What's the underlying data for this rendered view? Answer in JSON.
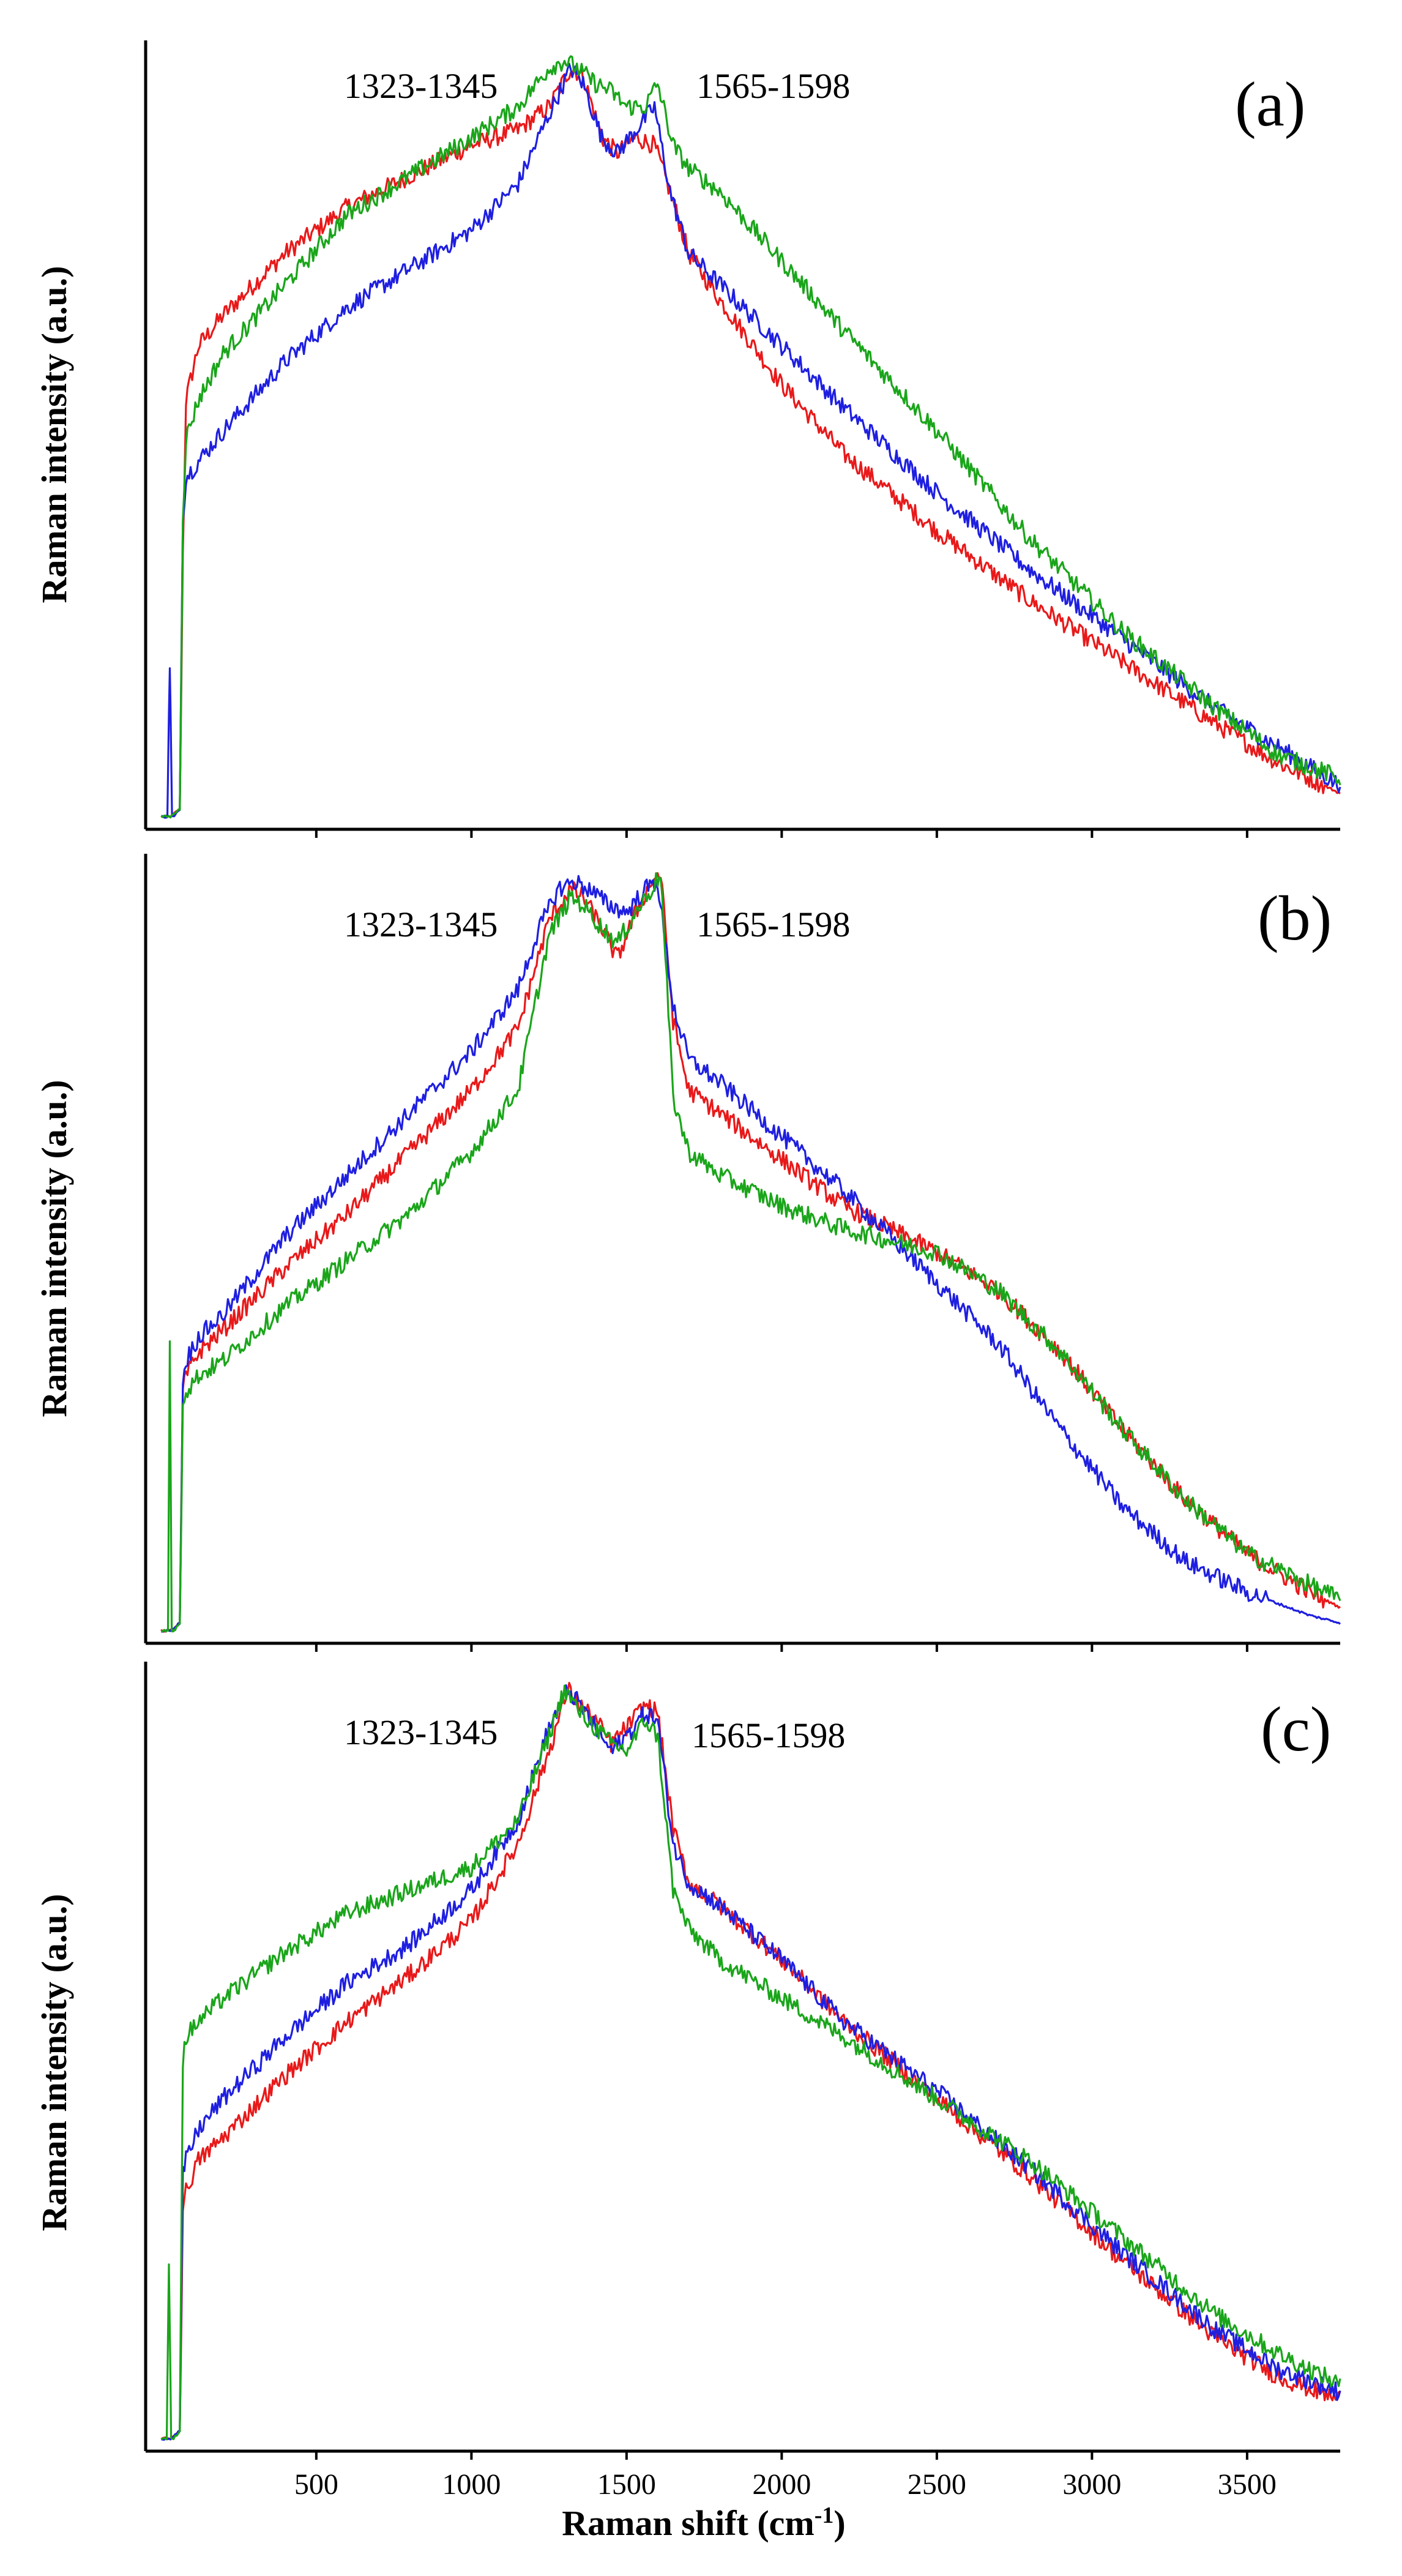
{
  "chart_data": [
    {
      "type": "line",
      "panel": "(a)",
      "ylabel": "Raman intensity (a.u.)",
      "xlim": [
        -50,
        3800
      ],
      "ylim": [
        0,
        1
      ],
      "annotations": [
        "1323-1345",
        "1565-1598"
      ],
      "series": [
        {
          "name": "red",
          "color": "#e8191a",
          "x": [
            0,
            30,
            60,
            70,
            80,
            120,
            200,
            400,
            600,
            800,
            1000,
            1150,
            1250,
            1320,
            1360,
            1420,
            1470,
            1530,
            1590,
            1640,
            1700,
            1800,
            2000,
            2200,
            2500,
            2800,
            3100,
            3400,
            3600,
            3800
          ],
          "y": [
            0.01,
            0.01,
            0.02,
            0.35,
            0.55,
            0.62,
            0.66,
            0.74,
            0.8,
            0.84,
            0.88,
            0.9,
            0.93,
            0.98,
            0.97,
            0.89,
            0.87,
            0.89,
            0.88,
            0.82,
            0.74,
            0.68,
            0.57,
            0.48,
            0.38,
            0.29,
            0.21,
            0.13,
            0.08,
            0.04
          ]
        },
        {
          "name": "blue",
          "color": "#1f1fe0",
          "x": [
            0,
            20,
            28,
            35,
            42,
            60,
            70,
            80,
            120,
            200,
            400,
            600,
            800,
            1000,
            1150,
            1250,
            1320,
            1360,
            1420,
            1470,
            1530,
            1590,
            1640,
            1700,
            1800,
            2000,
            2200,
            2500,
            2800,
            3100,
            3400,
            3600,
            3800
          ],
          "y": [
            0.01,
            0.01,
            0.21,
            0.01,
            0.01,
            0.02,
            0.4,
            0.45,
            0.47,
            0.51,
            0.6,
            0.67,
            0.72,
            0.77,
            0.83,
            0.92,
            0.98,
            0.96,
            0.89,
            0.87,
            0.9,
            0.93,
            0.82,
            0.74,
            0.7,
            0.62,
            0.54,
            0.43,
            0.33,
            0.24,
            0.15,
            0.1,
            0.05
          ]
        },
        {
          "name": "green",
          "color": "#1aa51a",
          "x": [
            0,
            30,
            60,
            70,
            80,
            120,
            200,
            400,
            600,
            800,
            1000,
            1150,
            1250,
            1300,
            1340,
            1400,
            1450,
            1500,
            1560,
            1600,
            1650,
            1700,
            1800,
            2000,
            2200,
            2500,
            2800,
            3100,
            3400,
            3600,
            3800
          ],
          "y": [
            0.01,
            0.01,
            0.02,
            0.4,
            0.5,
            0.55,
            0.61,
            0.7,
            0.79,
            0.84,
            0.89,
            0.93,
            0.98,
            0.99,
            0.98,
            0.96,
            0.95,
            0.93,
            0.93,
            0.96,
            0.88,
            0.85,
            0.82,
            0.73,
            0.64,
            0.51,
            0.37,
            0.25,
            0.15,
            0.09,
            0.06
          ]
        }
      ]
    },
    {
      "type": "line",
      "panel": "(b)",
      "ylabel": "Raman intensity (a.u.)",
      "xlim": [
        -50,
        3800
      ],
      "ylim": [
        0,
        1
      ],
      "annotations": [
        "1323-1345",
        "1565-1598"
      ],
      "series": [
        {
          "name": "red",
          "color": "#e8191a",
          "x": [
            0,
            30,
            60,
            70,
            80,
            120,
            200,
            400,
            600,
            800,
            1000,
            1150,
            1250,
            1320,
            1360,
            1420,
            1470,
            1530,
            1580,
            1610,
            1650,
            1700,
            1800,
            2000,
            2200,
            2500,
            2700,
            2900,
            3100,
            3300,
            3500,
            3700,
            3800
          ],
          "y": [
            0.01,
            0.01,
            0.02,
            0.32,
            0.34,
            0.37,
            0.4,
            0.48,
            0.55,
            0.63,
            0.71,
            0.79,
            0.93,
            0.97,
            0.96,
            0.92,
            0.88,
            0.94,
            0.98,
            0.99,
            0.8,
            0.71,
            0.68,
            0.62,
            0.56,
            0.5,
            0.45,
            0.37,
            0.27,
            0.18,
            0.11,
            0.06,
            0.04
          ]
        },
        {
          "name": "blue",
          "color": "#1f1fe0",
          "x": [
            0,
            30,
            60,
            70,
            80,
            120,
            200,
            400,
            600,
            800,
            1000,
            1150,
            1220,
            1280,
            1330,
            1380,
            1440,
            1500,
            1560,
            1600,
            1650,
            1700,
            1800,
            2000,
            2200,
            2500,
            2700,
            2900,
            3100,
            3300,
            3500,
            3700,
            3800
          ],
          "y": [
            0.01,
            0.01,
            0.02,
            0.33,
            0.36,
            0.39,
            0.42,
            0.52,
            0.6,
            0.68,
            0.76,
            0.84,
            0.92,
            0.97,
            0.98,
            0.97,
            0.95,
            0.94,
            0.97,
            0.98,
            0.82,
            0.75,
            0.72,
            0.65,
            0.58,
            0.46,
            0.38,
            0.27,
            0.17,
            0.1,
            0.06,
            0.03,
            0.02
          ]
        },
        {
          "name": "green",
          "color": "#1aa51a",
          "x": [
            0,
            22,
            28,
            34,
            42,
            60,
            70,
            80,
            120,
            200,
            400,
            600,
            800,
            1000,
            1150,
            1250,
            1320,
            1360,
            1420,
            1470,
            1530,
            1580,
            1610,
            1650,
            1700,
            1800,
            2000,
            2200,
            2500,
            2700,
            2900,
            3100,
            3300,
            3500,
            3700,
            3800
          ],
          "y": [
            0.01,
            0.01,
            0.38,
            0.01,
            0.01,
            0.02,
            0.31,
            0.32,
            0.34,
            0.36,
            0.43,
            0.49,
            0.55,
            0.63,
            0.71,
            0.91,
            0.96,
            0.95,
            0.92,
            0.9,
            0.94,
            0.97,
            0.99,
            0.7,
            0.63,
            0.6,
            0.56,
            0.53,
            0.5,
            0.45,
            0.37,
            0.27,
            0.18,
            0.11,
            0.07,
            0.05
          ]
        }
      ]
    },
    {
      "type": "line",
      "panel": "(c)",
      "ylabel": "Raman intensity (a.u.)",
      "xlabel": "Raman shift (cm",
      "xlabel_sup": "-1",
      "xlabel_end": ")",
      "xlim": [
        -50,
        3800
      ],
      "ylim": [
        0,
        1
      ],
      "xticks": [
        "500",
        "1000",
        "1500",
        "2000",
        "2500",
        "3000",
        "3500"
      ],
      "annotations": [
        "1323-1345",
        "1565-1598"
      ],
      "series": [
        {
          "name": "red",
          "color": "#e8191a",
          "x": [
            0,
            30,
            60,
            70,
            80,
            120,
            200,
            400,
            600,
            800,
            1000,
            1150,
            1250,
            1310,
            1350,
            1400,
            1450,
            1500,
            1560,
            1600,
            1650,
            1700,
            1800,
            2000,
            2200,
            2500,
            2800,
            3100,
            3400,
            3600,
            3800
          ],
          "y": [
            0.01,
            0.01,
            0.02,
            0.31,
            0.33,
            0.37,
            0.4,
            0.48,
            0.55,
            0.61,
            0.68,
            0.78,
            0.9,
            0.98,
            0.96,
            0.94,
            0.91,
            0.93,
            0.96,
            0.95,
            0.8,
            0.73,
            0.7,
            0.63,
            0.55,
            0.45,
            0.35,
            0.24,
            0.14,
            0.09,
            0.06
          ]
        },
        {
          "name": "blue",
          "color": "#1f1fe0",
          "x": [
            0,
            30,
            60,
            70,
            80,
            120,
            200,
            400,
            600,
            800,
            1000,
            1150,
            1250,
            1310,
            1350,
            1400,
            1450,
            1500,
            1560,
            1600,
            1650,
            1700,
            1800,
            2000,
            2200,
            2500,
            2800,
            3100,
            3400,
            3600,
            3800
          ],
          "y": [
            0.01,
            0.01,
            0.02,
            0.35,
            0.37,
            0.41,
            0.45,
            0.53,
            0.6,
            0.65,
            0.72,
            0.81,
            0.93,
            0.98,
            0.96,
            0.93,
            0.9,
            0.92,
            0.95,
            0.94,
            0.78,
            0.73,
            0.7,
            0.63,
            0.55,
            0.46,
            0.36,
            0.25,
            0.15,
            0.1,
            0.07
          ]
        },
        {
          "name": "green",
          "color": "#1aa51a",
          "x": [
            0,
            18,
            25,
            32,
            40,
            60,
            70,
            80,
            120,
            200,
            400,
            600,
            800,
            1000,
            1150,
            1250,
            1300,
            1350,
            1400,
            1450,
            1500,
            1560,
            1600,
            1650,
            1700,
            1800,
            2000,
            2200,
            2500,
            2800,
            3100,
            3400,
            3600,
            3800
          ],
          "y": [
            0.01,
            0.01,
            0.24,
            0.01,
            0.01,
            0.02,
            0.5,
            0.53,
            0.55,
            0.58,
            0.64,
            0.69,
            0.72,
            0.75,
            0.81,
            0.92,
            0.98,
            0.95,
            0.93,
            0.91,
            0.9,
            0.94,
            0.92,
            0.72,
            0.67,
            0.63,
            0.58,
            0.53,
            0.45,
            0.37,
            0.27,
            0.17,
            0.12,
            0.08
          ]
        }
      ]
    }
  ]
}
